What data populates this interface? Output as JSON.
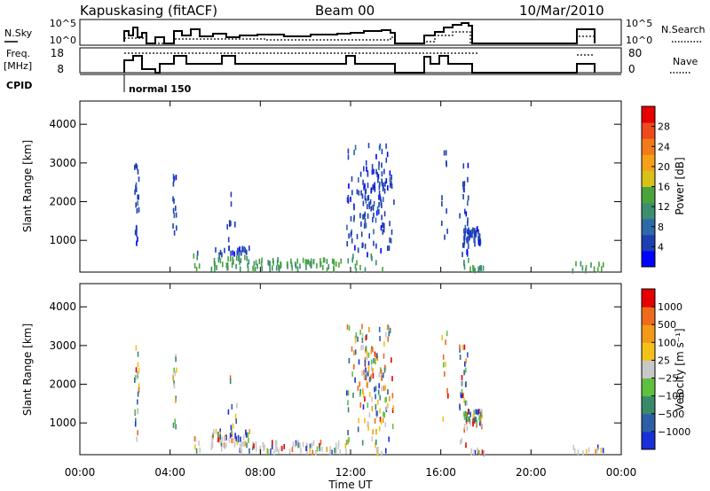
{
  "header": {
    "station": "Kapuskasing (fitACF)",
    "beam": "Beam 00",
    "date": "10/Mar/2010"
  },
  "top_panels": {
    "nsky_label": "N.Sky",
    "nsky_ticks": [
      "10^5",
      "10^0"
    ],
    "nsearch_ticks": [
      "10^5",
      "10^0"
    ],
    "nsearch_label": "N.Search",
    "freq_label": "Freq.",
    "freq_unit": "[MHz]",
    "freq_ticks": [
      "18",
      "8"
    ],
    "nave_ticks": [
      "80",
      "0"
    ],
    "nave_label": "Nave",
    "cpid_label": "CPID",
    "cpid_value": "normal 150"
  },
  "chart_data": [
    {
      "type": "scatter",
      "name": "power",
      "ylabel": "Slant Range [km]",
      "ylim": [
        180,
        4600
      ],
      "yticks": [
        "1000",
        "2000",
        "3000",
        "4000"
      ],
      "xlim": [
        0,
        24
      ],
      "colorbar_label": "Power [dB]",
      "colorbar_ticks": [
        "28",
        "24",
        "20",
        "16",
        "12",
        "8",
        "4"
      ],
      "colors": [
        "#0000ff",
        "#1e3fb4",
        "#2c6aa8",
        "#3c8f6e",
        "#4ba33c",
        "#d8c21a",
        "#f4a118",
        "#f27a1a",
        "#ee4a1c",
        "#e60000"
      ]
    },
    {
      "type": "scatter",
      "name": "velocity",
      "ylabel": "Slant Range [km]",
      "ylim": [
        180,
        4600
      ],
      "yticks": [
        "1000",
        "2000",
        "3000",
        "4000"
      ],
      "xlim": [
        0,
        24
      ],
      "xticks": [
        "00:00",
        "04:00",
        "08:00",
        "12:00",
        "16:00",
        "20:00",
        "00:00"
      ],
      "xlabel": "Time UT",
      "colorbar_label": "Velocity [m s⁻¹]",
      "colorbar_ticks": [
        "1000",
        "500",
        "100",
        "25",
        "−25",
        "−100",
        "−500",
        "−1000"
      ],
      "colors": [
        "#1a2fd8",
        "#2e5fa6",
        "#3a8a6a",
        "#5fc040",
        "#c8c8c8",
        "#f2c21a",
        "#f29a18",
        "#ee6a1c",
        "#e60000"
      ]
    }
  ]
}
